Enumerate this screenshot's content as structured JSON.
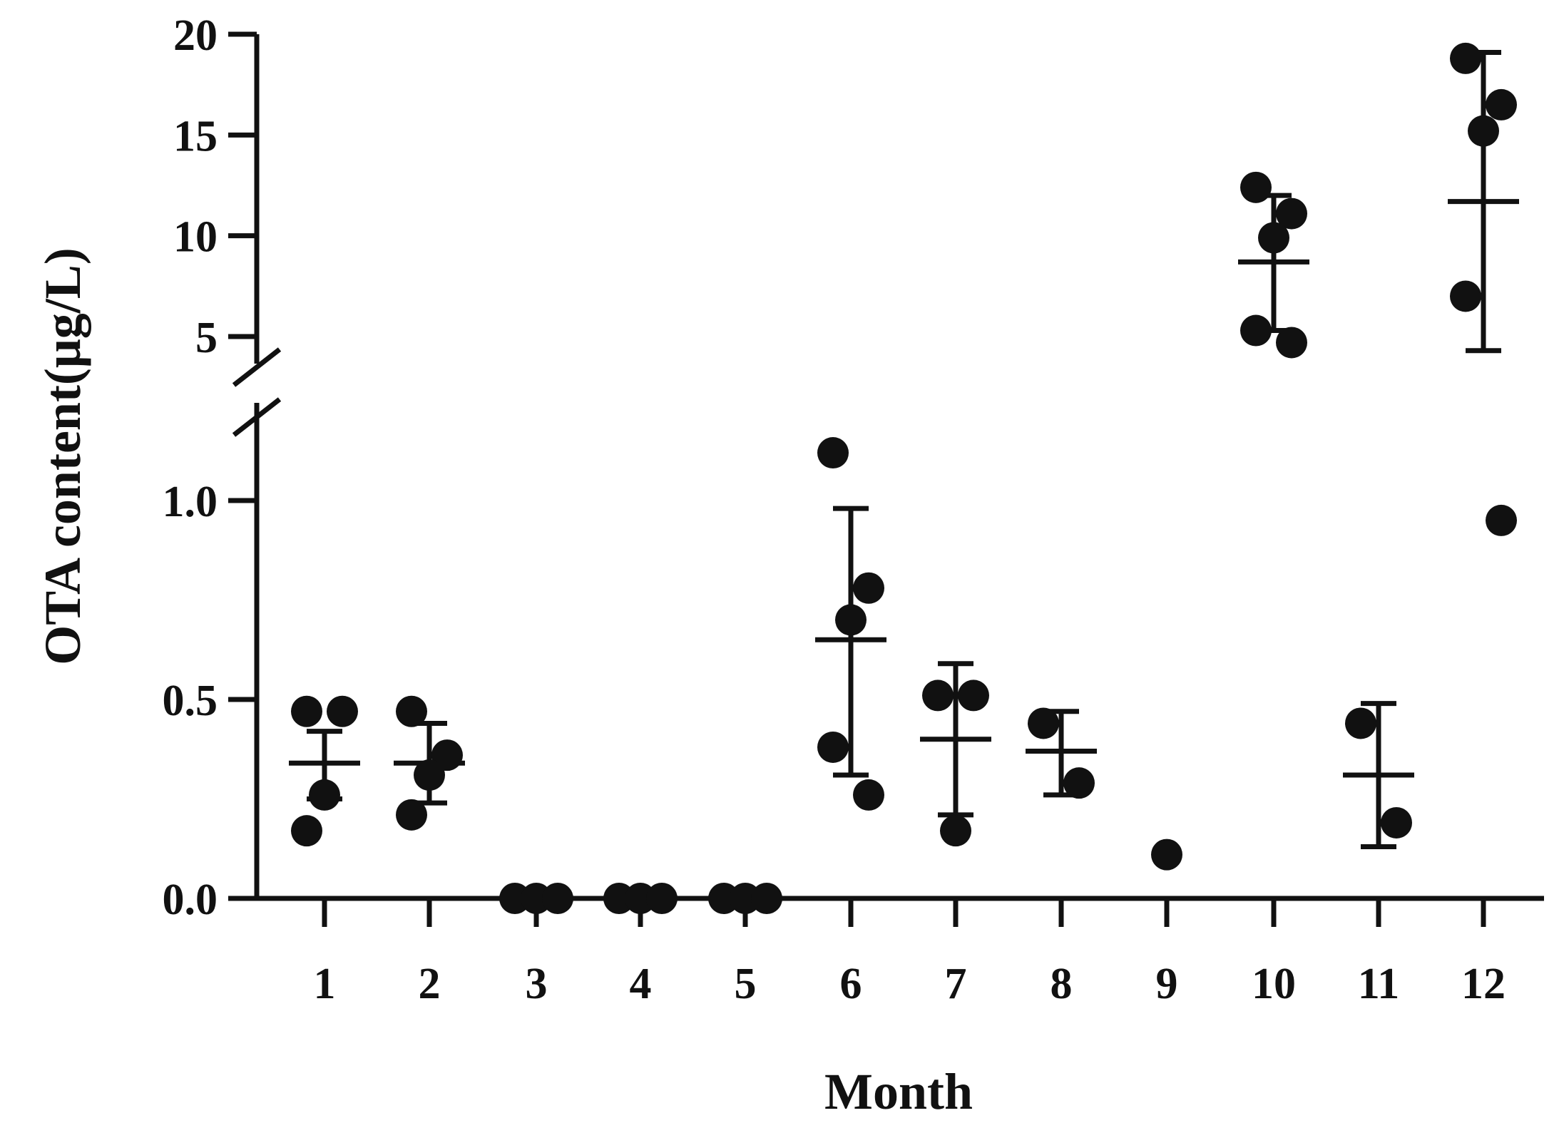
{
  "chart_data": {
    "type": "scatter",
    "xlabel": "Month",
    "ylabel": "OTA content(μg/L)",
    "categories": [
      "1",
      "2",
      "3",
      "4",
      "5",
      "6",
      "7",
      "8",
      "9",
      "10",
      "11",
      "12"
    ],
    "y_break": {
      "lower_segment_ylim": [
        0,
        1.2
      ],
      "upper_segment_ylim": [
        4,
        20
      ],
      "lower_ticks": [
        "0.0",
        "0.5",
        "1.0"
      ],
      "upper_ticks": [
        "5",
        "10",
        "15",
        "20"
      ]
    },
    "series": [
      {
        "points": [
          {
            "month": "1",
            "values": [
              0.47,
              0.47,
              0.26,
              0.17
            ]
          },
          {
            "month": "2",
            "values": [
              0.47,
              0.36,
              0.31,
              0.21
            ]
          },
          {
            "month": "3",
            "values": [
              0,
              0,
              0
            ]
          },
          {
            "month": "4",
            "values": [
              0,
              0,
              0
            ]
          },
          {
            "month": "5",
            "values": [
              0,
              0,
              0
            ]
          },
          {
            "month": "6",
            "values": [
              1.12,
              0.78,
              0.7,
              0.38,
              0.26
            ]
          },
          {
            "month": "7",
            "values": [
              0.51,
              0.51,
              0.17
            ]
          },
          {
            "month": "8",
            "values": [
              0.44,
              0.29
            ]
          },
          {
            "month": "9",
            "values": [
              0.11
            ]
          },
          {
            "month": "10",
            "values": [
              12.4,
              11.1,
              9.9,
              5.3,
              4.7
            ]
          },
          {
            "month": "11",
            "values": [
              0.44,
              0.19
            ]
          },
          {
            "month": "12",
            "values": [
              18.8,
              16.5,
              15.2,
              7.0,
              0.95
            ]
          }
        ]
      }
    ],
    "summary": [
      {
        "month": "1",
        "mean": 0.34,
        "sd_low": 0.25,
        "sd_high": 0.42
      },
      {
        "month": "2",
        "mean": 0.34,
        "sd_low": 0.24,
        "sd_high": 0.44
      },
      {
        "month": "6",
        "mean": 0.65,
        "sd_low": 0.31,
        "sd_high": 0.98
      },
      {
        "month": "7",
        "mean": 0.4,
        "sd_low": 0.21,
        "sd_high": 0.59
      },
      {
        "month": "8",
        "mean": 0.37,
        "sd_low": 0.26,
        "sd_high": 0.47
      },
      {
        "month": "10",
        "mean": 8.7,
        "sd_low": 5.3,
        "sd_high": 12.0
      },
      {
        "month": "11",
        "mean": 0.31,
        "sd_low": 0.13,
        "sd_high": 0.49
      },
      {
        "month": "12",
        "mean": 11.7,
        "sd_low": 4.3,
        "sd_high": 19.1
      }
    ],
    "grid": false,
    "legend": "none"
  }
}
